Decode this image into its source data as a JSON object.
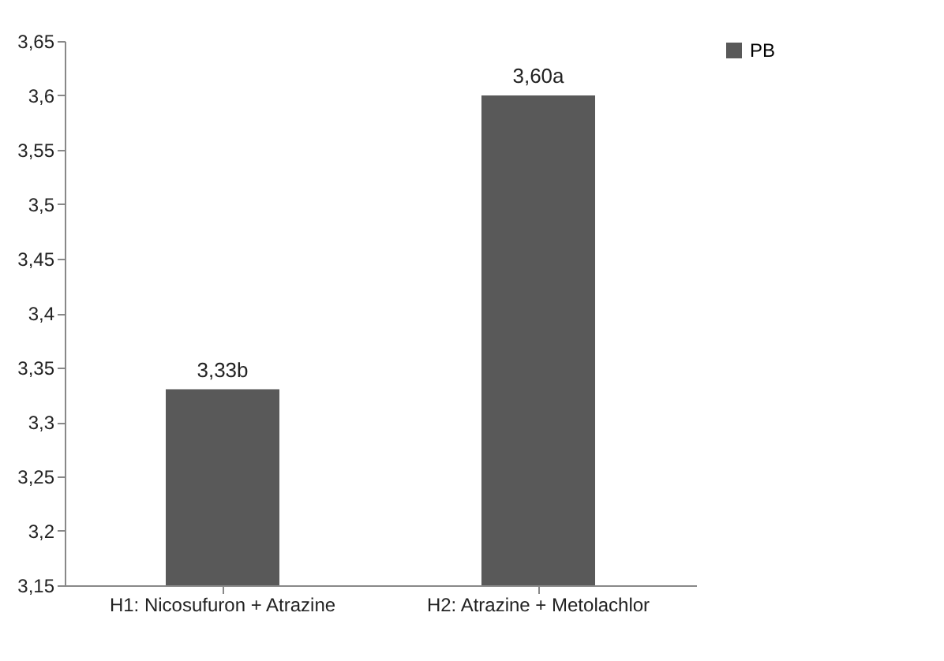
{
  "chart_data": {
    "type": "bar",
    "categories": [
      "H1: Nicosufuron + Atrazine",
      "H2: Atrazine + Metolachlor"
    ],
    "series": [
      {
        "name": "PB",
        "color": "#595959",
        "values": [
          3.33,
          3.6
        ],
        "value_labels": [
          "3,33b",
          "3,60a"
        ]
      }
    ],
    "ylim": [
      3.15,
      3.65
    ],
    "yticks": [
      {
        "value": 3.15,
        "label": "3,15"
      },
      {
        "value": 3.2,
        "label": "3,2"
      },
      {
        "value": 3.25,
        "label": "3,25"
      },
      {
        "value": 3.3,
        "label": "3,3"
      },
      {
        "value": 3.35,
        "label": "3,35"
      },
      {
        "value": 3.4,
        "label": "3,4"
      },
      {
        "value": 3.45,
        "label": "3,45"
      },
      {
        "value": 3.5,
        "label": "3,5"
      },
      {
        "value": 3.55,
        "label": "3,55"
      },
      {
        "value": 3.6,
        "label": "3,6"
      },
      {
        "value": 3.65,
        "label": "3,65"
      }
    ],
    "grid": false,
    "legend": "right"
  }
}
